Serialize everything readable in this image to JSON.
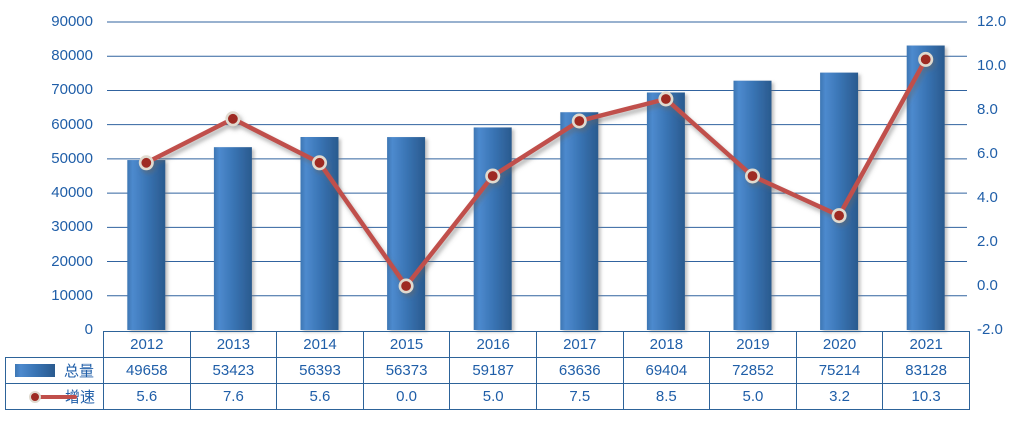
{
  "chart_data": {
    "type": "combo-bar-line",
    "categories": [
      "2012",
      "2013",
      "2014",
      "2015",
      "2016",
      "2017",
      "2018",
      "2019",
      "2020",
      "2021"
    ],
    "series": [
      {
        "name": "总量",
        "type": "bar",
        "axis": "left",
        "values": [
          49658,
          53423,
          56393,
          56373,
          59187,
          63636,
          69404,
          72852,
          75214,
          83128
        ],
        "display": [
          "49658",
          "53423",
          "56393",
          "56373",
          "59187",
          "63636",
          "69404",
          "72852",
          "75214",
          "83128"
        ]
      },
      {
        "name": "增速",
        "type": "line",
        "axis": "right",
        "values": [
          5.6,
          7.6,
          5.6,
          0.0,
          5.0,
          7.5,
          8.5,
          5.0,
          3.2,
          10.3
        ],
        "display": [
          "5.6",
          "7.6",
          "5.6",
          "0.0",
          "5.0",
          "7.5",
          "8.5",
          "5.0",
          "3.2",
          "10.3"
        ]
      }
    ],
    "left_axis": {
      "min": 0,
      "max": 90000,
      "step": 10000,
      "tick_labels": [
        "90000",
        "80000",
        "70000",
        "60000",
        "50000",
        "40000",
        "30000",
        "20000",
        "10000",
        "0"
      ]
    },
    "right_axis": {
      "min": -2,
      "max": 12,
      "step": 2,
      "tick_labels": [
        "12.0",
        "10.0",
        "8.0",
        "6.0",
        "4.0",
        "2.0",
        "0.0",
        "-2.0"
      ]
    },
    "grid": "horizontal-major-left-axis",
    "legend_position": "table-left",
    "title": ""
  },
  "colors": {
    "text_blue": "#1f5ea8",
    "grid_blue": "#31639f",
    "table_border_blue": "#2d6399",
    "bar_gradient": [
      "#3d76b3",
      "#4d8ace",
      "#3974b4",
      "#2a5a8e"
    ],
    "line_red": "#c04f4b",
    "marker_fill": "#9e2b24",
    "marker_ring": "#e0dacf",
    "background": "#ffffff"
  }
}
